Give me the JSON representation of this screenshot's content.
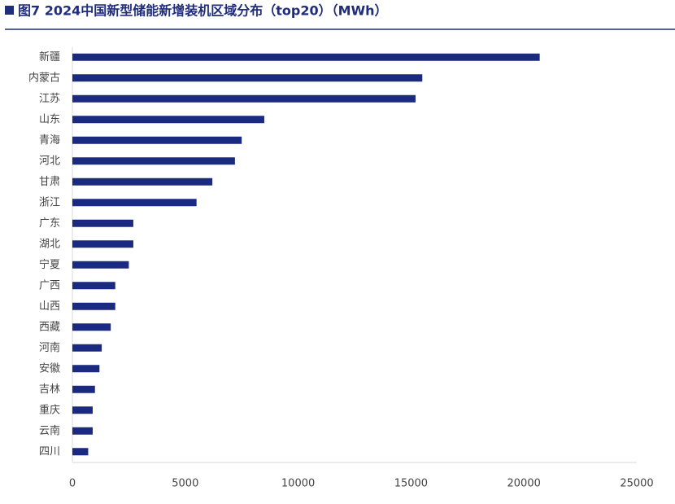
{
  "chart_data": {
    "type": "barh",
    "title": "图7 2024中国新型储能新增装机区域分布（top20）（MWh）",
    "categories": [
      "新疆",
      "内蒙古",
      "江苏",
      "山东",
      "青海",
      "河北",
      "甘肃",
      "浙江",
      "广东",
      "湖北",
      "宁夏",
      "广西",
      "山西",
      "西藏",
      "河南",
      "安徽",
      "吉林",
      "重庆",
      "云南",
      "四川"
    ],
    "values": [
      20700,
      15500,
      15200,
      8500,
      7500,
      7200,
      6200,
      5500,
      2700,
      2700,
      2500,
      1900,
      1900,
      1700,
      1300,
      1200,
      1000,
      900,
      900,
      700
    ],
    "color": "#1a2a80",
    "xlim": [
      0,
      25000
    ],
    "xticks": [
      0,
      5000,
      10000,
      15000,
      20000,
      25000
    ],
    "grid": false
  }
}
